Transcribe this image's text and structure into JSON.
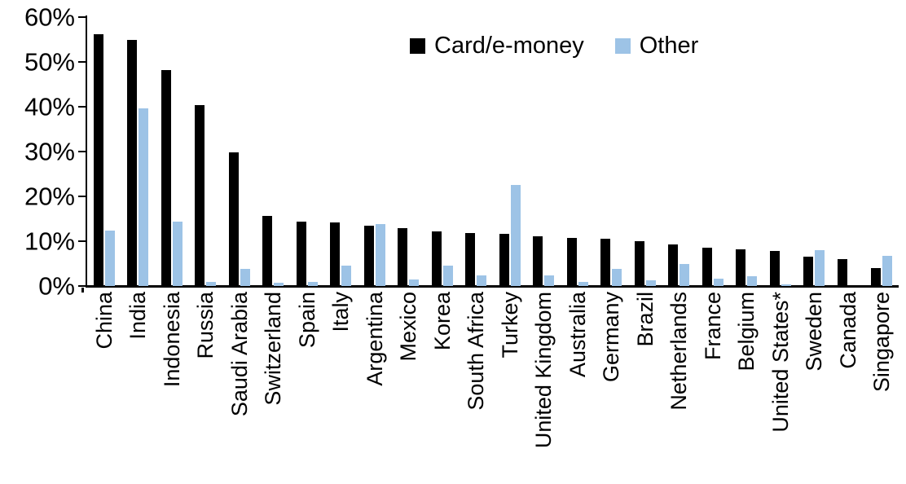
{
  "chart_data": {
    "type": "bar",
    "title": "",
    "xlabel": "",
    "ylabel": "",
    "categories": [
      "China",
      "India",
      "Indonesia",
      "Russia",
      "Saudi Arabia",
      "Switzerland",
      "Spain",
      "Italy",
      "Argentina",
      "Mexico",
      "Korea",
      "South Africa",
      "Turkey",
      "United Kingdom",
      "Australia",
      "Germany",
      "Brazil",
      "Netherlands",
      "France",
      "Belgium",
      "United States*",
      "Sweden",
      "Canada",
      "Singapore"
    ],
    "series": [
      {
        "name": "Card/e-money",
        "color": "#000000",
        "values": [
          56.2,
          55.0,
          48.2,
          40.4,
          29.8,
          15.6,
          14.3,
          14.2,
          13.4,
          13.0,
          12.2,
          11.8,
          11.7,
          11.1,
          10.8,
          10.5,
          10.0,
          9.2,
          8.6,
          8.2,
          7.9,
          6.6,
          6.0,
          4.0
        ]
      },
      {
        "name": "Other",
        "color": "#9DC3E6",
        "values": [
          12.3,
          39.7,
          14.4,
          1.0,
          3.9,
          0.8,
          1.0,
          4.6,
          13.8,
          1.4,
          4.6,
          2.4,
          22.6,
          2.3,
          1.0,
          3.9,
          1.2,
          4.9,
          1.6,
          2.1,
          0.3,
          8.1,
          0.0,
          6.8
        ]
      }
    ],
    "ylim": [
      0,
      60
    ],
    "ytick_step": 10,
    "ytick_labels": [
      "0%",
      "10%",
      "20%",
      "30%",
      "40%",
      "50%",
      "60%"
    ],
    "grid": false,
    "legend_position": "top-center"
  }
}
